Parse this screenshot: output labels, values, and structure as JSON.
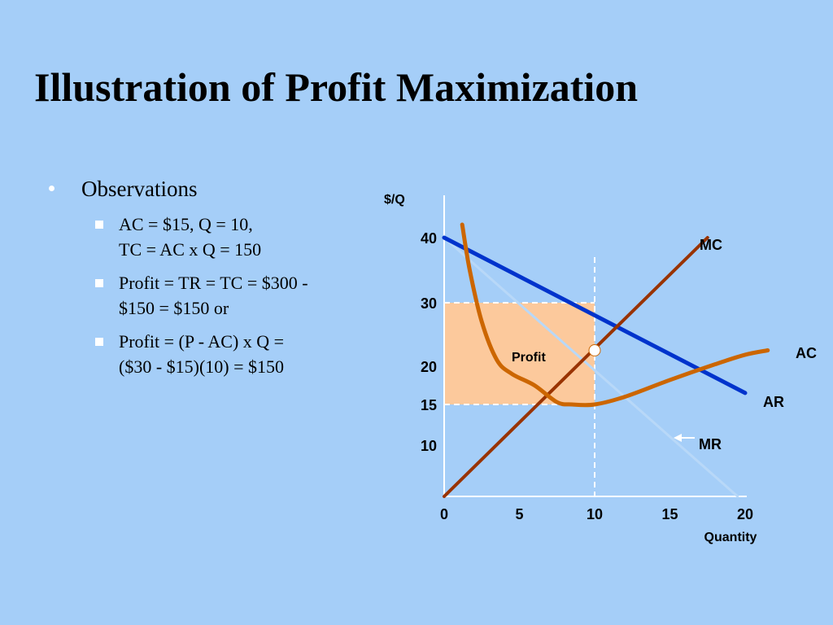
{
  "slide": {
    "title": "Illustration of Profit Maximization",
    "observations": {
      "heading": "Observations",
      "items": [
        {
          "lines": [
            "AC = $15, Q = 10,",
            "TC = AC x Q = 150"
          ]
        },
        {
          "lines": [
            "Profit = TR = TC = $300 -",
            "$150 = $150 or"
          ]
        },
        {
          "lines": [
            "Profit = (P - AC) x Q =",
            "($30 - $15)(10) = $150"
          ]
        }
      ]
    }
  },
  "chart_data": {
    "type": "line",
    "ylabel": "$/Q",
    "xlabel": "Quantity",
    "xlim": [
      0,
      20
    ],
    "y_axis_ticks": [
      "10",
      "15",
      "20",
      "30",
      "40"
    ],
    "x_axis_ticks": [
      "0",
      "5",
      "10",
      "15",
      "20"
    ],
    "series": [
      {
        "name": "MC",
        "color": "#993300",
        "points": [
          [
            0,
            0
          ],
          [
            17.5,
            40
          ]
        ]
      },
      {
        "name": "AR",
        "color": "#0033cc",
        "points": [
          [
            0,
            40
          ],
          [
            20,
            16.5
          ]
        ]
      },
      {
        "name": "MR",
        "color": "#b8d8f8",
        "points": [
          [
            0,
            40
          ],
          [
            19.5,
            0
          ]
        ]
      },
      {
        "name": "AC",
        "color": "#cc6600",
        "points": [
          [
            1.2,
            42
          ],
          [
            1.7,
            35
          ],
          [
            2.5,
            27
          ],
          [
            3.5,
            21
          ],
          [
            4.5,
            19
          ],
          [
            6,
            17.5
          ],
          [
            7.5,
            15.3
          ],
          [
            8.5,
            15
          ],
          [
            10,
            15
          ],
          [
            12,
            16
          ],
          [
            15,
            18.2
          ],
          [
            18,
            20.3
          ],
          [
            20,
            21.8
          ],
          [
            21.5,
            22.5
          ]
        ]
      }
    ],
    "equilibrium": {
      "q": 10,
      "p": 30,
      "ac": 15,
      "mr_mc_crossing": [
        10,
        22.5
      ]
    },
    "profit_region": {
      "label": "Profit",
      "q": [
        0,
        10
      ],
      "y": [
        15,
        30
      ],
      "color": "#fcc99c"
    },
    "annotation_arrow": "MR"
  }
}
